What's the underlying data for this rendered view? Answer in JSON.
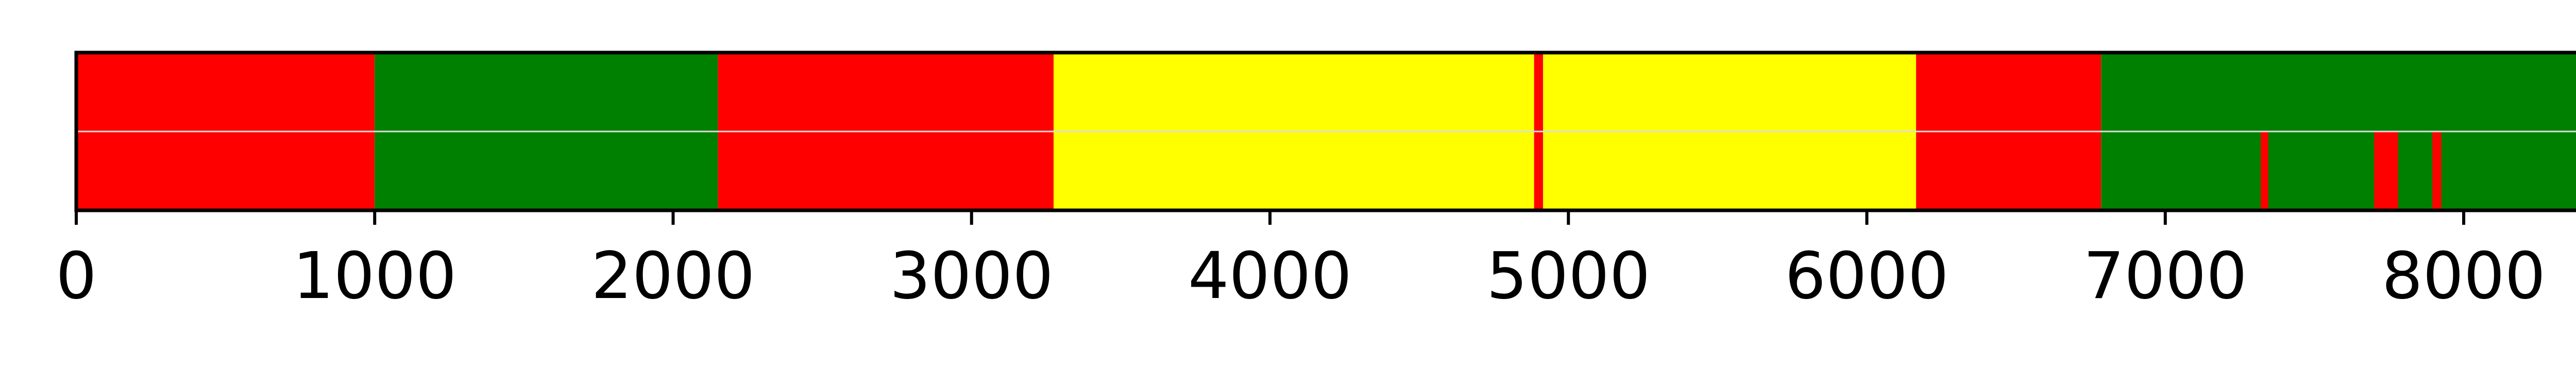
{
  "chart_data": {
    "type": "bar",
    "orientation": "horizontal-timeline",
    "xlim": [
      0,
      8580
    ],
    "ylim": [
      0,
      1
    ],
    "grid": false,
    "center_line": true,
    "xticks": [
      {
        "value": 0,
        "label": "0"
      },
      {
        "value": 1000,
        "label": "1000"
      },
      {
        "value": 2000,
        "label": "2000"
      },
      {
        "value": 3000,
        "label": "3000"
      },
      {
        "value": 4000,
        "label": "4000"
      },
      {
        "value": 5000,
        "label": "5000"
      },
      {
        "value": 6000,
        "label": "6000"
      },
      {
        "value": 7000,
        "label": "7000"
      },
      {
        "value": 8000,
        "label": "8000"
      }
    ],
    "colors": {
      "red": "#ff0000",
      "green": "#008000",
      "yellow": "#ffff00",
      "frame": "#000000",
      "center_line": "#dddddd"
    },
    "segments": [
      {
        "start": 0,
        "end": 1000,
        "color": "red"
      },
      {
        "start": 1000,
        "end": 2150,
        "color": "green"
      },
      {
        "start": 2150,
        "end": 3275,
        "color": "red"
      },
      {
        "start": 3275,
        "end": 4885,
        "color": "yellow"
      },
      {
        "start": 4885,
        "end": 4915,
        "color": "red"
      },
      {
        "start": 4915,
        "end": 6165,
        "color": "yellow"
      },
      {
        "start": 6165,
        "end": 6785,
        "color": "red"
      },
      {
        "start": 6785,
        "end": 8580,
        "color": "green"
      }
    ],
    "lower_marks": [
      {
        "start": 7320,
        "end": 7345,
        "color": "red"
      },
      {
        "start": 7700,
        "end": 7780,
        "color": "red"
      },
      {
        "start": 7895,
        "end": 7925,
        "color": "red"
      }
    ]
  }
}
